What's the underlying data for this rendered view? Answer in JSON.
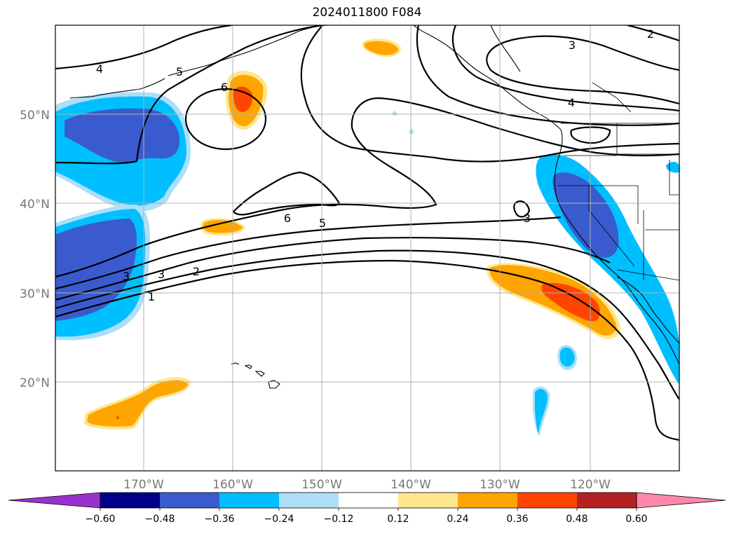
{
  "title": "2024011800 F084",
  "map": {
    "lon_range": [
      "180°W",
      "110°W"
    ],
    "lat_range": [
      "10°N",
      "60°N"
    ],
    "lat_ticks": [
      "20°N",
      "30°N",
      "40°N",
      "50°N"
    ],
    "lon_ticks": [
      "170°W",
      "160°W",
      "150°W",
      "140°W",
      "130°W",
      "120°W"
    ],
    "grid": true,
    "contour_labels": [
      "4",
      "5",
      "6",
      "6",
      "5",
      "2",
      "3",
      "3",
      "4",
      "3",
      "2",
      "1",
      "3"
    ]
  },
  "colorbar": {
    "tick_labels": [
      "−0.60",
      "−0.48",
      "−0.36",
      "−0.24",
      "−0.12",
      "0.12",
      "0.24",
      "0.36",
      "0.48",
      "0.60"
    ],
    "colors": {
      "below": "#9932CC",
      "b1": "#00008B",
      "b2": "#3A5BCD",
      "b3": "#00BFFF",
      "b4": "#ADDFF8",
      "b5": "#FFFFFF",
      "b6": "#FFE68A",
      "b7": "#FFA500",
      "b8": "#FF4500",
      "b9": "#B22222",
      "above": "#FF88AA"
    }
  }
}
